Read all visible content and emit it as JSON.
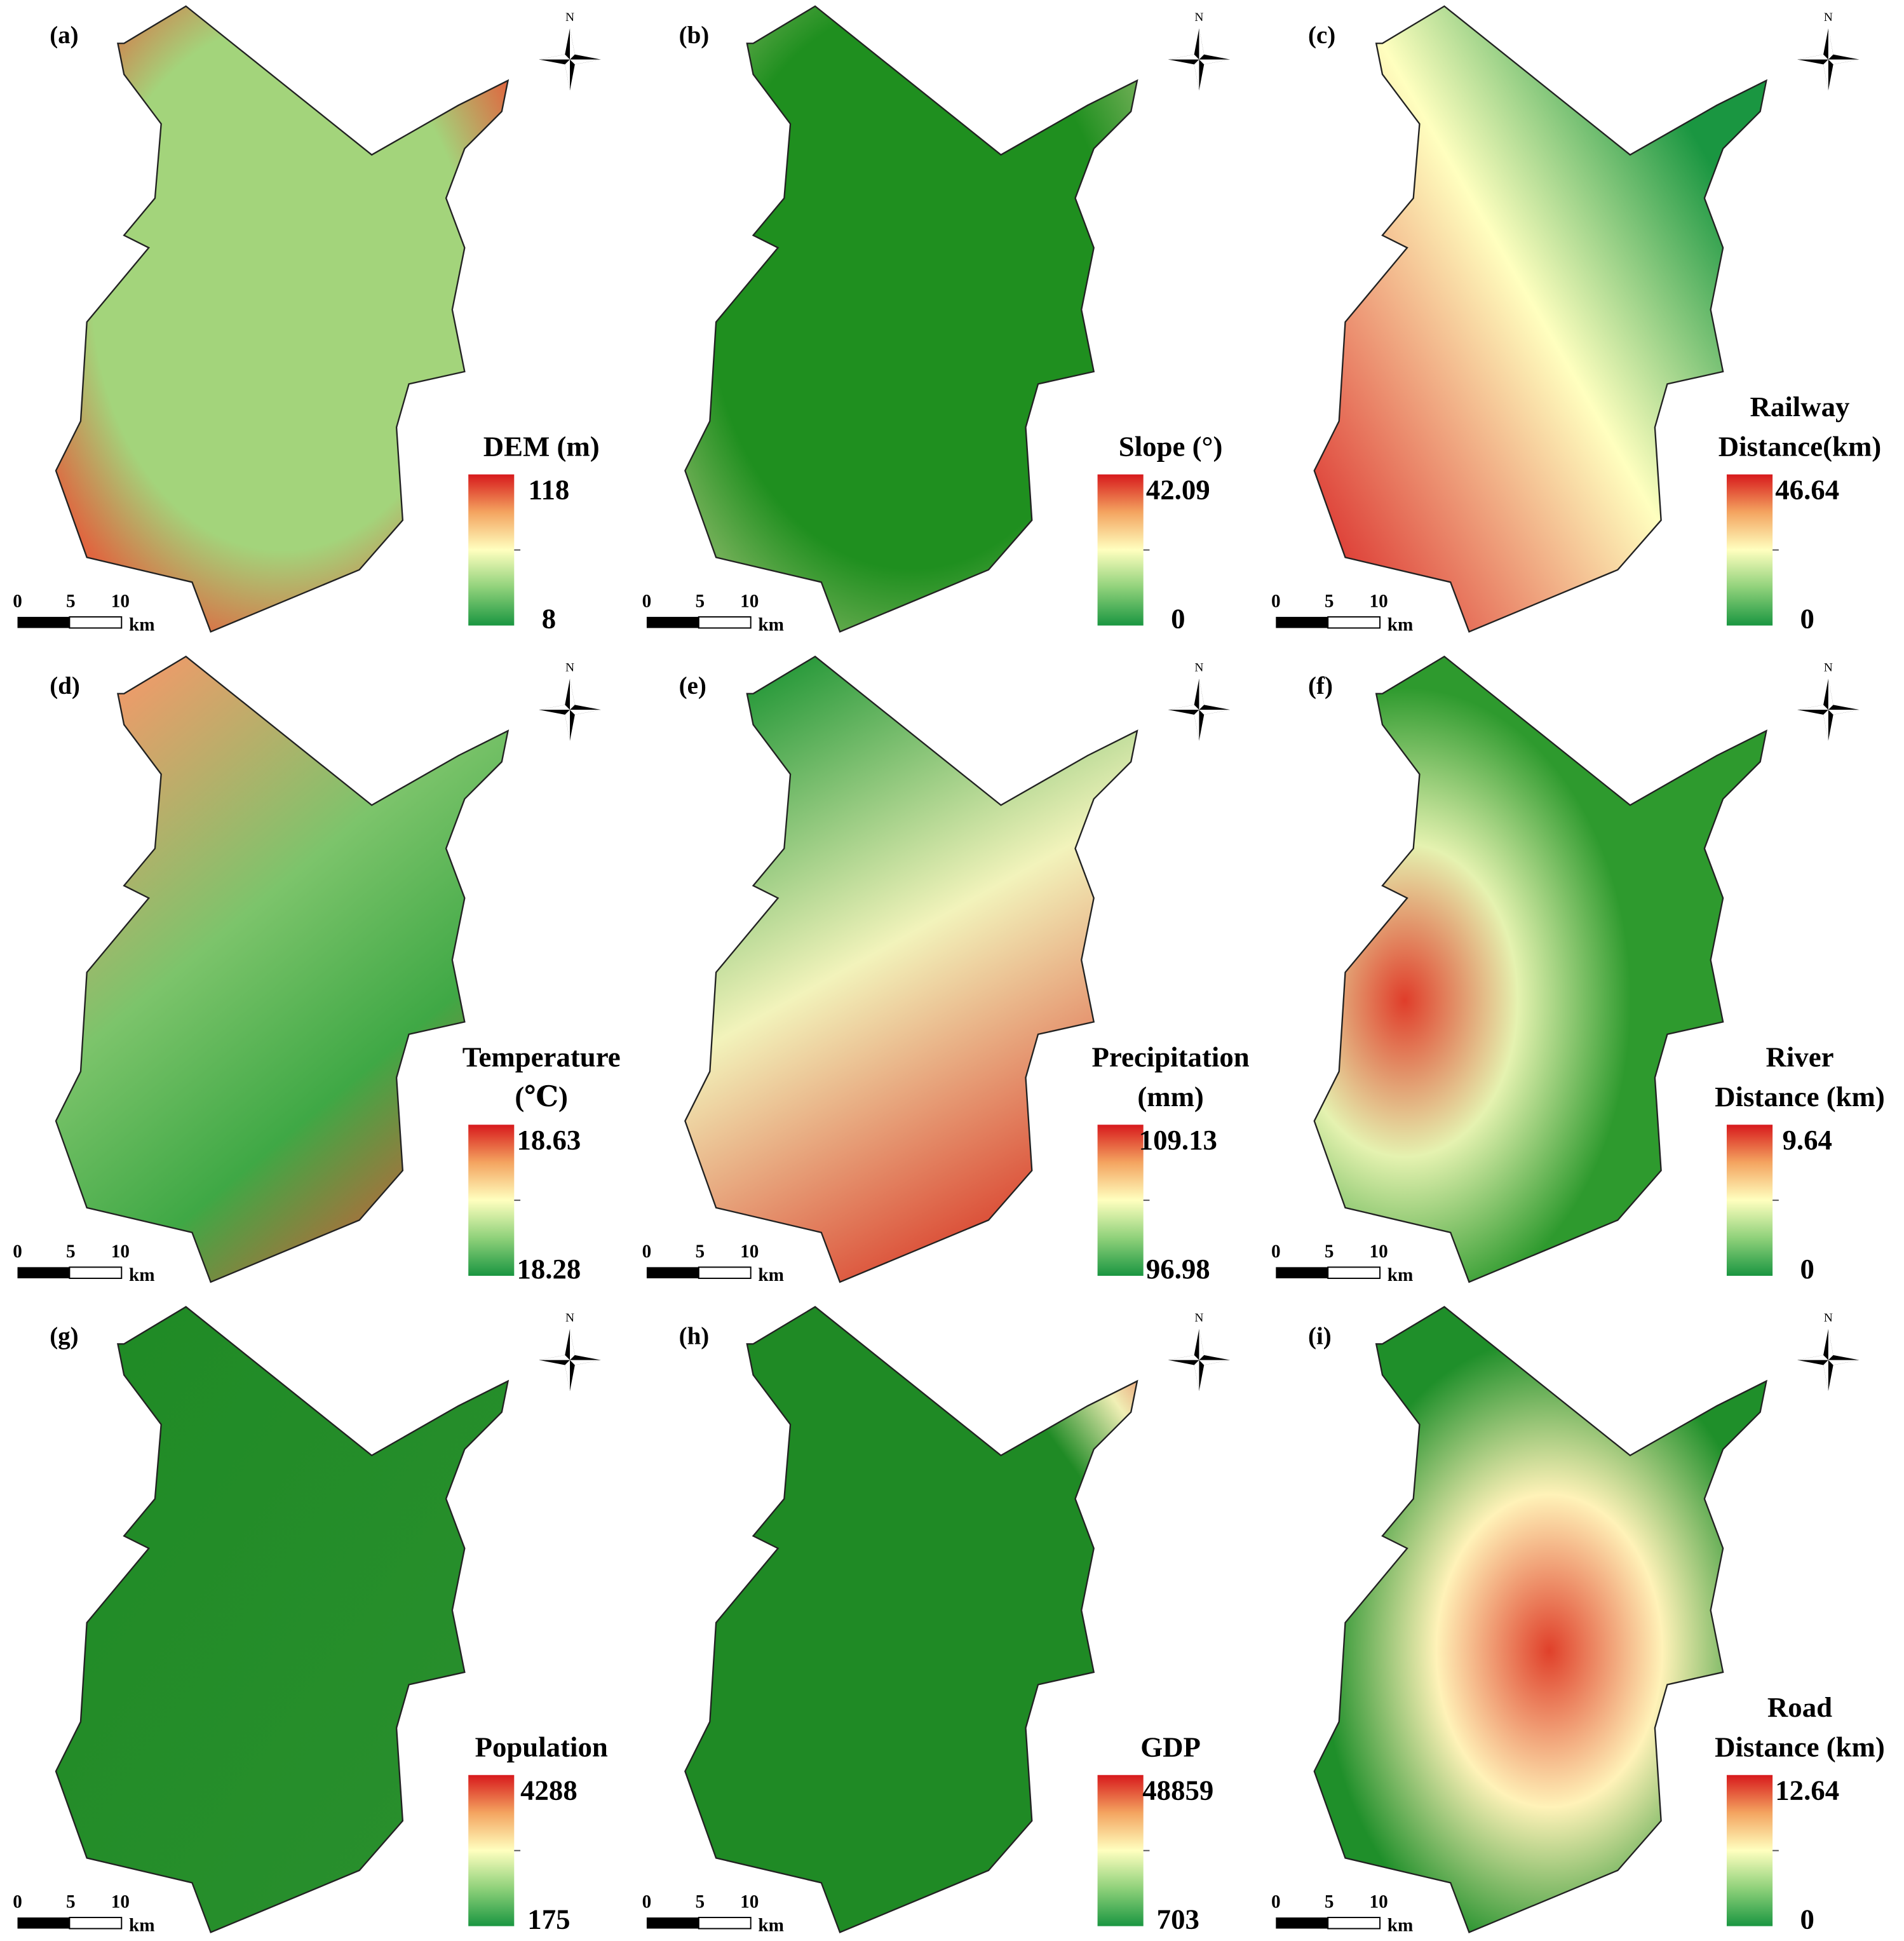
{
  "panels": [
    {
      "label": "(a)",
      "title": [
        "DEM (m)"
      ],
      "max": "118",
      "min": "8"
    },
    {
      "label": "(b)",
      "title": [
        "Slope (°)"
      ],
      "max": "42.09",
      "min": "0"
    },
    {
      "label": "(c)",
      "title": [
        "Railway",
        "Distance(km)"
      ],
      "max": "46.64",
      "min": "0"
    },
    {
      "label": "(d)",
      "title": [
        "Temperature",
        "(℃)"
      ],
      "max": "18.63",
      "min": "18.28"
    },
    {
      "label": "(e)",
      "title": [
        "Precipitation",
        "(mm)"
      ],
      "max": "109.13",
      "min": "96.98"
    },
    {
      "label": "(f)",
      "title": [
        "River",
        "Distance (km)"
      ],
      "max": "9.64",
      "min": "0"
    },
    {
      "label": "(g)",
      "title": [
        "Population"
      ],
      "max": "4288",
      "min": "175"
    },
    {
      "label": "(h)",
      "title": [
        "GDP"
      ],
      "max": "48859",
      "min": "703"
    },
    {
      "label": "(i)",
      "title": [
        "Road",
        "Distance (km)"
      ],
      "max": "12.64",
      "min": "0"
    }
  ],
  "scale_bar": {
    "ticks": [
      "0",
      "5",
      "10"
    ],
    "unit": "km"
  },
  "north": "N"
}
